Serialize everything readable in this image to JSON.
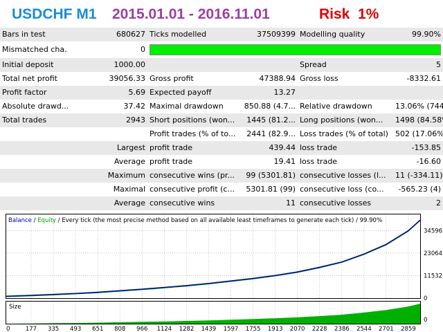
{
  "header": {
    "symbol": "USDCHF M1",
    "period": "2015.01.01 - 2016.11.01",
    "risk": "Risk  1%",
    "colors": {
      "symbol": "#1a8cd8",
      "period": "#9b3fa3",
      "risk": "#e00000"
    }
  },
  "stats": {
    "bars_label": "Bars in test",
    "bars_value": "680627",
    "ticks_label": "Ticks modelled",
    "ticks_value": "37509399",
    "quality_label": "Modelling quality",
    "quality_value": "99.90%",
    "mismatched_label": "Mismatched cha...",
    "mismatched_value": "0",
    "deposit_label": "Initial deposit",
    "deposit_value": "1000.00",
    "spread_label": "Spread",
    "spread_value": "5",
    "net_profit_label": "Total net profit",
    "net_profit_value": "39056.33",
    "gross_profit_label": "Gross profit",
    "gross_profit_value": "47388.94",
    "gross_loss_label": "Gross loss",
    "gross_loss_value": "-8332.61",
    "pf_label": "Profit factor",
    "pf_value": "5.69",
    "payoff_label": "Expected payoff",
    "payoff_value": "13.27",
    "abs_dd_label": "Absolute drawd...",
    "abs_dd_value": "37.42",
    "max_dd_label": "Maximal drawdown",
    "max_dd_value": "850.88 (4.7...",
    "rel_dd_label": "Relative drawdown",
    "rel_dd_value": "13.06% (744....",
    "trades_label": "Total trades",
    "trades_value": "2943",
    "short_label": "Short positions (won...",
    "short_value": "1445 (81.2...",
    "long_label": "Long positions (won...",
    "long_value": "1498 (84.58%)",
    "profit_trades_label": "Profit trades (% of to...",
    "profit_trades_value": "2441 (82.9...",
    "loss_trades_label": "Loss trades (% of total)",
    "loss_trades_value": "502 (17.06%)",
    "largest_label": "Largest",
    "largest_profit_label": "profit trade",
    "largest_profit_value": "439.44",
    "largest_loss_label": "loss trade",
    "largest_loss_value": "-153.85",
    "average_label": "Average",
    "avg_profit_label": "profit trade",
    "avg_profit_value": "19.41",
    "avg_loss_label": "loss trade",
    "avg_loss_value": "-16.60",
    "maximum_label": "Maximum",
    "max_wins_label": "consecutive wins (pr...",
    "max_wins_value": "99 (5301.81)",
    "max_losses_label": "consecutive losses (l...",
    "max_losses_value": "11 (-334.11)",
    "maximal_label": "Maximal",
    "maximal_profit_label": "consecutive profit (c...",
    "maximal_profit_value": "5301.81 (99)",
    "maximal_loss_label": "consecutive loss (co...",
    "maximal_loss_value": "-565.23 (4)",
    "average2_label": "Average",
    "avg_wins_label": "consecutive wins",
    "avg_wins_value": "11",
    "avg_losses_label": "consecutive losses",
    "avg_losses_value": "2",
    "modelling_quality_fraction": 0.999
  },
  "chart_data": {
    "type": "area",
    "legend": {
      "balance": "Balance",
      "sep1": " / ",
      "equity": "Equity",
      "rest": " / Every tick (the most precise method based on all available least timeframes to generate each tick) / 99.90%"
    },
    "y_ticks": [
      "34596",
      "23064",
      "11532",
      "0"
    ],
    "y_tick_values": [
      34596,
      23064,
      11532,
      0
    ],
    "ylim": [
      0,
      40000
    ],
    "x_ticks": [
      "0",
      "177",
      "335",
      "493",
      "651",
      "808",
      "966",
      "1124",
      "1282",
      "1439",
      "1597",
      "1755",
      "1913",
      "2070",
      "2228",
      "2386",
      "2544",
      "2701",
      "2859"
    ],
    "xlim": [
      0,
      2943
    ],
    "size_label": "Size",
    "series": [
      {
        "name": "Balance",
        "x": [
          0,
          177,
          335,
          493,
          651,
          808,
          966,
          1124,
          1282,
          1439,
          1597,
          1755,
          1913,
          2070,
          2228,
          2386,
          2544,
          2701,
          2859,
          2943
        ],
        "values": [
          1000,
          1400,
          1900,
          2400,
          3000,
          3800,
          4600,
          5500,
          6400,
          7500,
          8800,
          10100,
          11600,
          13400,
          15800,
          18500,
          22600,
          27500,
          34500,
          40000
        ]
      }
    ],
    "colors": {
      "balance": "#0000a0",
      "equity": "#00a000",
      "size": "#00b000",
      "grid": "#a0a0a0"
    }
  }
}
